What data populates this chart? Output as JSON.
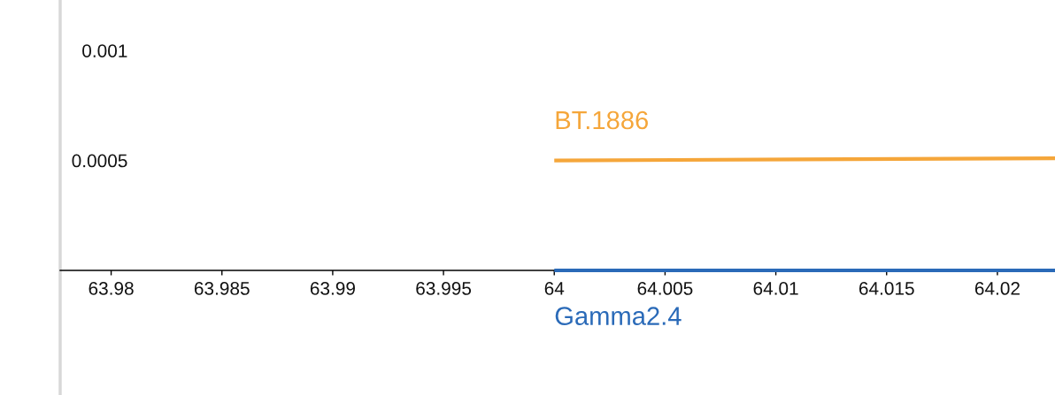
{
  "chart_data": {
    "type": "line",
    "series": [
      {
        "name": "BT.1886",
        "color": "#f5a63a",
        "x": [
          64,
          64.011,
          64.0226
        ],
        "values": [
          0.0005,
          0.000505,
          0.00051
        ]
      },
      {
        "name": "Gamma2.4",
        "color": "#2a6ab8",
        "x": [
          64,
          64.0226
        ],
        "values": [
          0,
          0
        ]
      }
    ],
    "xlim": [
      63.9777,
      64.0226
    ],
    "xticks": [
      63.98,
      63.985,
      63.99,
      63.995,
      64,
      64.005,
      64.01,
      64.015,
      64.02
    ],
    "ylim": [
      -0.000567,
      0.00123
    ],
    "yticks": [
      0.0005,
      0.001
    ],
    "grid": false,
    "legend": false,
    "marker": "none",
    "line_style": "solid"
  }
}
